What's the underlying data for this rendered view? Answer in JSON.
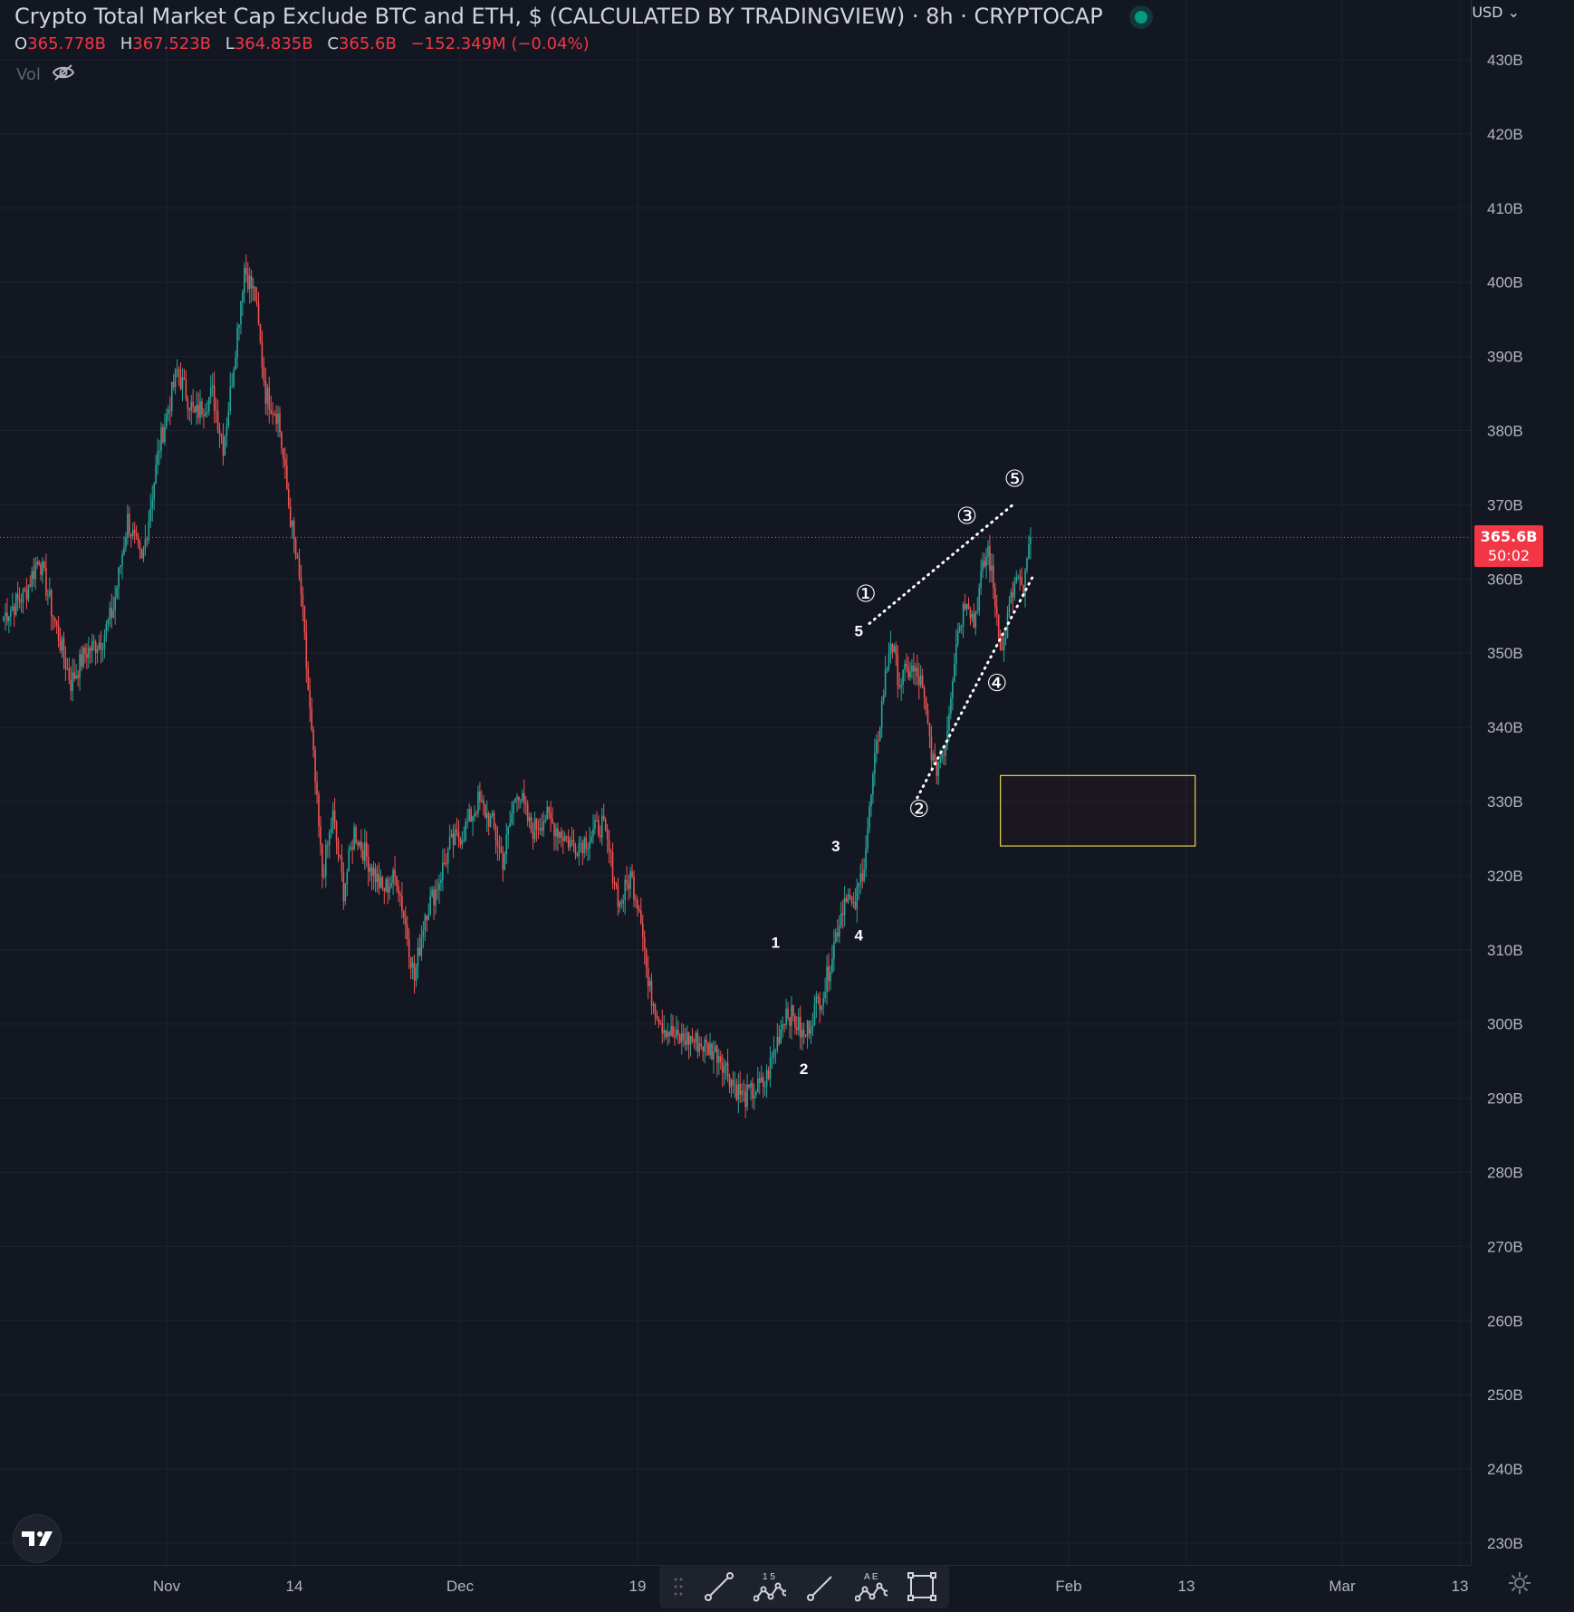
{
  "header": {
    "title": "Crypto Total Market Cap Exclude BTC and ETH, $ (CALCULATED BY TRADINGVIEW) · 8h · CRYPTOCAP",
    "ohlc": [
      {
        "key": "O",
        "value": "365.778B"
      },
      {
        "key": "H",
        "value": "367.523B"
      },
      {
        "key": "L",
        "value": "364.835B"
      },
      {
        "key": "C",
        "value": "365.6B"
      }
    ],
    "change": "−152.349M (−0.04%)",
    "vol_label": "Vol",
    "currency": "USD"
  },
  "price_tag": {
    "price": "365.6B",
    "countdown": "50:02"
  },
  "toolbar": {
    "tools": [
      "trend-line-tool",
      "elliott-impulse-tool",
      "line-tool",
      "elliott-correction-tool",
      "rectangle-tool"
    ],
    "impulse_labels": "1 5",
    "correction_labels": "A E"
  },
  "colors": {
    "background": "#131722",
    "up": "#26a69a",
    "down": "#ef5350",
    "grid": "#1e222d",
    "text": "#d1d4dc",
    "rect": "#e8d44d"
  },
  "chart_data": {
    "type": "candlestick",
    "title": "Crypto Total Market Cap Exclude BTC and ETH, $ (CALCULATED BY TRADINGVIEW) · 8h · CRYPTOCAP",
    "y_unit": "B",
    "ylim": [
      225,
      435
    ],
    "y_ticks": [
      "430B",
      "420B",
      "410B",
      "400B",
      "390B",
      "380B",
      "370B",
      "360B",
      "350B",
      "340B",
      "330B",
      "320B",
      "310B",
      "300B",
      "290B",
      "280B",
      "270B",
      "260B",
      "250B",
      "240B",
      "230B"
    ],
    "x_ticks": [
      "Nov",
      "14",
      "Dec",
      "19",
      "Feb",
      "13",
      "Mar",
      "13"
    ],
    "last_price": 365.6,
    "close_path": [
      [
        0,
        355
      ],
      [
        12,
        358
      ],
      [
        20,
        363
      ],
      [
        28,
        355
      ],
      [
        38,
        346
      ],
      [
        46,
        350
      ],
      [
        56,
        352
      ],
      [
        62,
        356
      ],
      [
        70,
        368
      ],
      [
        78,
        362
      ],
      [
        88,
        378
      ],
      [
        98,
        388
      ],
      [
        108,
        382
      ],
      [
        118,
        385
      ],
      [
        124,
        378
      ],
      [
        128,
        385
      ],
      [
        136,
        402
      ],
      [
        142,
        398
      ],
      [
        148,
        385
      ],
      [
        155,
        382
      ],
      [
        161,
        370
      ],
      [
        168,
        358
      ],
      [
        172,
        345
      ],
      [
        180,
        320
      ],
      [
        186,
        328
      ],
      [
        192,
        318
      ],
      [
        198,
        326
      ],
      [
        206,
        322
      ],
      [
        214,
        318
      ],
      [
        222,
        320
      ],
      [
        228,
        312
      ],
      [
        232,
        306
      ],
      [
        238,
        315
      ],
      [
        244,
        318
      ],
      [
        252,
        324
      ],
      [
        260,
        326
      ],
      [
        268,
        330
      ],
      [
        276,
        327
      ],
      [
        282,
        322
      ],
      [
        290,
        332
      ],
      [
        298,
        326
      ],
      [
        306,
        328
      ],
      [
        314,
        326
      ],
      [
        322,
        324
      ],
      [
        330,
        325
      ],
      [
        338,
        327
      ],
      [
        342,
        323
      ],
      [
        348,
        316
      ],
      [
        354,
        320
      ],
      [
        360,
        315
      ],
      [
        364,
        305
      ],
      [
        372,
        300
      ],
      [
        380,
        298
      ],
      [
        388,
        298
      ],
      [
        396,
        297
      ],
      [
        404,
        296
      ],
      [
        412,
        292
      ],
      [
        418,
        290
      ],
      [
        424,
        291
      ],
      [
        430,
        292
      ],
      [
        436,
        297
      ],
      [
        442,
        302
      ],
      [
        448,
        300
      ],
      [
        452,
        298
      ],
      [
        458,
        302
      ],
      [
        464,
        305
      ],
      [
        470,
        312
      ],
      [
        476,
        318
      ],
      [
        480,
        315
      ],
      [
        486,
        322
      ],
      [
        492,
        335
      ],
      [
        497,
        345
      ],
      [
        501,
        352
      ],
      [
        506,
        346
      ],
      [
        512,
        348
      ],
      [
        518,
        346
      ],
      [
        522,
        340
      ],
      [
        526,
        334
      ],
      [
        532,
        338
      ],
      [
        538,
        352
      ],
      [
        544,
        358
      ],
      [
        548,
        354
      ],
      [
        552,
        360
      ],
      [
        556,
        364
      ],
      [
        560,
        357
      ],
      [
        564,
        350
      ],
      [
        568,
        356
      ],
      [
        572,
        360
      ],
      [
        576,
        358
      ],
      [
        580,
        366
      ]
    ],
    "annotations": {
      "sub_waves": [
        {
          "label": "1",
          "x": 436,
          "y": 311
        },
        {
          "label": "2",
          "x": 452,
          "y": 294
        },
        {
          "label": "3",
          "x": 470,
          "y": 324
        },
        {
          "label": "4",
          "x": 483,
          "y": 312
        },
        {
          "label": "5",
          "x": 483,
          "y": 353
        }
      ],
      "main_waves": [
        {
          "label": "①",
          "x": 487,
          "y": 358
        },
        {
          "label": "②",
          "x": 517,
          "y": 329
        },
        {
          "label": "③",
          "x": 544,
          "y": 368.5
        },
        {
          "label": "④",
          "x": 561,
          "y": 346
        },
        {
          "label": "⑤",
          "x": 571,
          "y": 373.5
        }
      ],
      "wedge_upper": [
        [
          489,
          354
        ],
        [
          571,
          370.2
        ]
      ],
      "wedge_lower": [
        [
          516,
          330.5
        ],
        [
          581,
          360.2
        ]
      ],
      "target_box": {
        "x1": 563,
        "x2": 673,
        "y1": 324,
        "y2": 333.5
      }
    }
  }
}
